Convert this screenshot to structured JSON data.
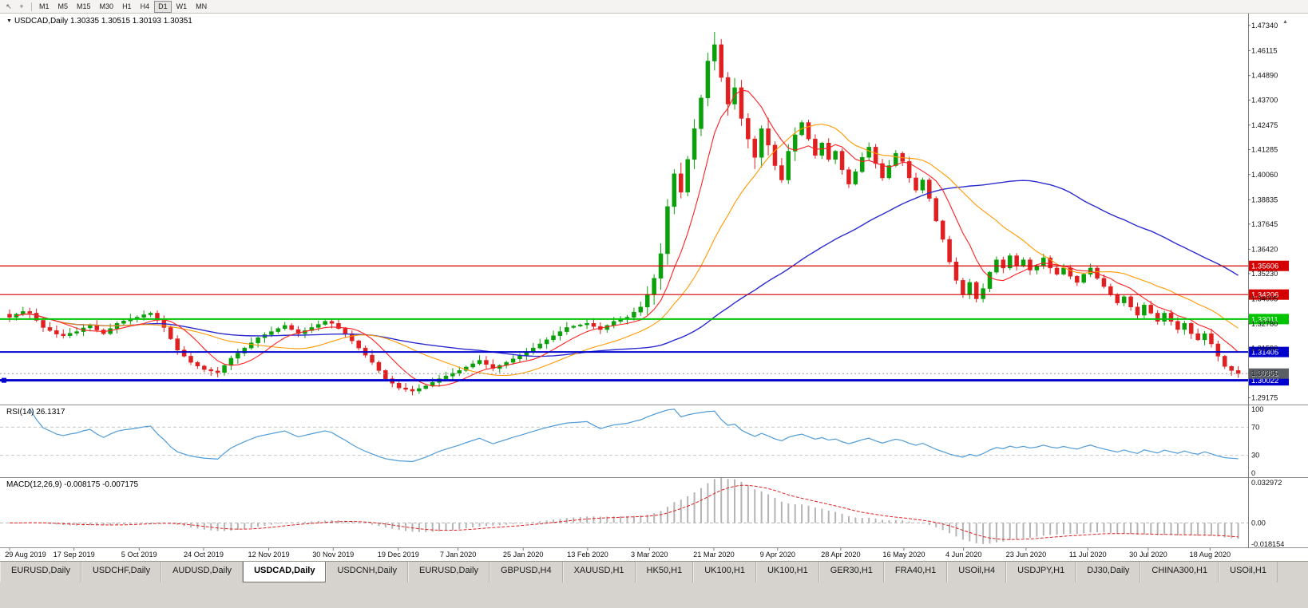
{
  "toolbar": {
    "timeframes": [
      "M1",
      "M5",
      "M15",
      "M30",
      "H1",
      "H4",
      "D1",
      "W1",
      "MN"
    ],
    "active_timeframe": "D1"
  },
  "icons": {
    "pointer": "↖",
    "crosshair": "+",
    "symbol_dropdown": "▼",
    "scroll_up": "▲"
  },
  "chart": {
    "title_text": "USDCAD,Daily 1.30335 1.30515 1.30193 1.30351",
    "rsi_label": "RSI(14) 26.1317",
    "macd_label": "MACD(12,26,9) -0.008175 -0.007175"
  },
  "chart_data": {
    "type": "candlestick",
    "symbol": "USDCAD",
    "timeframe": "Daily",
    "ohlc_display": {
      "open": 1.30335,
      "high": 1.30515,
      "low": 1.30193,
      "close": 1.30351
    },
    "y_range": {
      "min": 1.2888,
      "max": 1.478
    },
    "price_axis_labels": [
      "1.47340",
      "1.46115",
      "1.44890",
      "1.43700",
      "1.42475",
      "1.41285",
      "1.40060",
      "1.38835",
      "1.37645",
      "1.36420",
      "1.35230",
      "1.34005",
      "1.32780",
      "1.31590",
      "1.30365",
      "1.29175"
    ],
    "closes": [
      1.331,
      1.3325,
      1.3338,
      1.333,
      1.3295,
      1.326,
      1.3245,
      1.3228,
      1.322,
      1.3232,
      1.324,
      1.3258,
      1.327,
      1.3248,
      1.323,
      1.3255,
      1.328,
      1.3292,
      1.33,
      1.331,
      1.3322,
      1.333,
      1.3295,
      1.326,
      1.3205,
      1.315,
      1.312,
      1.309,
      1.3072,
      1.3055,
      1.3048,
      1.304,
      1.3075,
      1.311,
      1.3135,
      1.316,
      1.3185,
      1.321,
      1.3225,
      1.324,
      1.3255,
      1.327,
      1.325,
      1.323,
      1.3245,
      1.326,
      1.3275,
      1.329,
      1.328,
      1.3255,
      1.323,
      1.3195,
      1.316,
      1.3125,
      1.309,
      1.305,
      1.301,
      1.2988,
      1.2965,
      1.2958,
      1.295,
      1.2962,
      1.2975,
      1.2992,
      1.301,
      1.3023,
      1.3037,
      1.305,
      1.3067,
      1.3083,
      1.31,
      1.308,
      1.306,
      1.3075,
      1.309,
      1.3107,
      1.3123,
      1.314,
      1.316,
      1.318,
      1.32,
      1.322,
      1.324,
      1.326,
      1.3267,
      1.3273,
      1.328,
      1.3265,
      1.325,
      1.327,
      1.329,
      1.33,
      1.331,
      1.3335,
      1.336,
      1.342,
      1.35,
      1.362,
      1.385,
      1.401,
      1.392,
      1.408,
      1.423,
      1.438,
      1.456,
      1.464,
      1.448,
      1.435,
      1.443,
      1.428,
      1.418,
      1.409,
      1.423,
      1.415,
      1.405,
      1.398,
      1.412,
      1.42,
      1.426,
      1.418,
      1.41,
      1.416,
      1.408,
      1.412,
      1.403,
      1.396,
      1.402,
      1.409,
      1.414,
      1.406,
      1.399,
      1.405,
      1.411,
      1.407,
      1.399,
      1.393,
      1.398,
      1.389,
      1.378,
      1.369,
      1.358,
      1.349,
      1.342,
      1.348,
      1.34,
      1.345,
      1.353,
      1.359,
      1.355,
      1.361,
      1.356,
      1.359,
      1.354,
      1.356,
      1.36,
      1.355,
      1.352,
      1.355,
      1.351,
      1.348,
      1.352,
      1.355,
      1.35,
      1.346,
      1.342,
      1.338,
      1.341,
      1.336,
      1.332,
      1.337,
      1.333,
      1.329,
      1.333,
      1.329,
      1.325,
      1.328,
      1.323,
      1.32,
      1.323,
      1.318,
      1.312,
      1.307,
      1.305,
      1.3035
    ],
    "date_labels": [
      {
        "label": "29 Aug 2019",
        "pos": 0
      },
      {
        "label": "17 Sep 2019",
        "pos": 9.6
      },
      {
        "label": "5 Oct 2019",
        "pos": 19.3
      },
      {
        "label": "24 Oct 2019",
        "pos": 28.9
      },
      {
        "label": "12 Nov 2019",
        "pos": 38.6
      },
      {
        "label": "30 Nov 2019",
        "pos": 48.2
      },
      {
        "label": "19 Dec 2019",
        "pos": 57.9
      },
      {
        "label": "7 Jan 2020",
        "pos": 66.8
      },
      {
        "label": "25 Jan 2020",
        "pos": 76.5
      },
      {
        "label": "13 Feb 2020",
        "pos": 86.1
      },
      {
        "label": "3 Mar 2020",
        "pos": 95.3
      },
      {
        "label": "21 Mar 2020",
        "pos": 104.9
      },
      {
        "label": "9 Apr 2020",
        "pos": 114.4
      },
      {
        "label": "28 Apr 2020",
        "pos": 123.8
      },
      {
        "label": "16 May 2020",
        "pos": 133.2
      },
      {
        "label": "4 Jun 2020",
        "pos": 142.1
      },
      {
        "label": "23 Jun 2020",
        "pos": 151.4
      },
      {
        "label": "11 Jul 2020",
        "pos": 160.6
      },
      {
        "label": "30 Jul 2020",
        "pos": 169.6
      },
      {
        "label": "18 Aug 2020",
        "pos": 178.8
      }
    ],
    "hlines": [
      {
        "price": 1.35606,
        "label": "1.35606",
        "color": "#d40000",
        "width": 1.2,
        "handle": false
      },
      {
        "price": 1.34206,
        "label": "1.34206",
        "color": "#d40000",
        "width": 1.2,
        "handle": false
      },
      {
        "price": 1.33011,
        "label": "1.33011",
        "color": "#00c400",
        "width": 2,
        "handle": false
      },
      {
        "price": 1.31405,
        "label": "1.31405",
        "color": "#0000cc",
        "width": 2,
        "handle": false
      },
      {
        "price": 1.30022,
        "label": "1.30022",
        "color": "#0000cc",
        "width": 3,
        "handle": true
      }
    ],
    "current_price": {
      "price": 1.30351,
      "label": "1.30351",
      "tag_color": "#5a5f66"
    },
    "moving_averages": [
      {
        "period": 8,
        "color": "#ff2020",
        "width": 1.1
      },
      {
        "period": 20,
        "color": "#ff9900",
        "width": 1.1
      },
      {
        "period": 55,
        "color": "#2b2bd0",
        "width": 1.4
      }
    ],
    "rsi": {
      "period": 14,
      "current": 26.1317,
      "levels": [
        70,
        30
      ],
      "scale_labels": [
        "100",
        "70",
        "30",
        "0"
      ],
      "color": "#4f9bd8"
    },
    "macd": {
      "fast": 12,
      "slow": 26,
      "signal": 9,
      "current": -0.008175,
      "signal_current": -0.007175,
      "scale_labels": [
        "0.032972",
        "0.00",
        "-0.018154"
      ],
      "range": {
        "min": -0.0185,
        "max": 0.0335
      },
      "histogram_color": "#b4b4b4",
      "signal_color": "#e02020"
    },
    "candle_up_color": "#0aa00a",
    "candle_down_color": "#e02020"
  },
  "tabs": {
    "items": [
      "EURUSD,Daily",
      "USDCHF,Daily",
      "AUDUSD,Daily",
      "USDCAD,Daily",
      "USDCNH,Daily",
      "EURUSD,Daily",
      "GBPUSD,H4",
      "XAUUSD,H1",
      "HK50,H1",
      "UK100,H1",
      "UK100,H1",
      "GER30,H1",
      "FRA40,H1",
      "USOil,H4",
      "USDJPY,H1",
      "DJ30,Daily",
      "CHINA300,H1",
      "USOil,H1"
    ],
    "active_index": 3
  }
}
